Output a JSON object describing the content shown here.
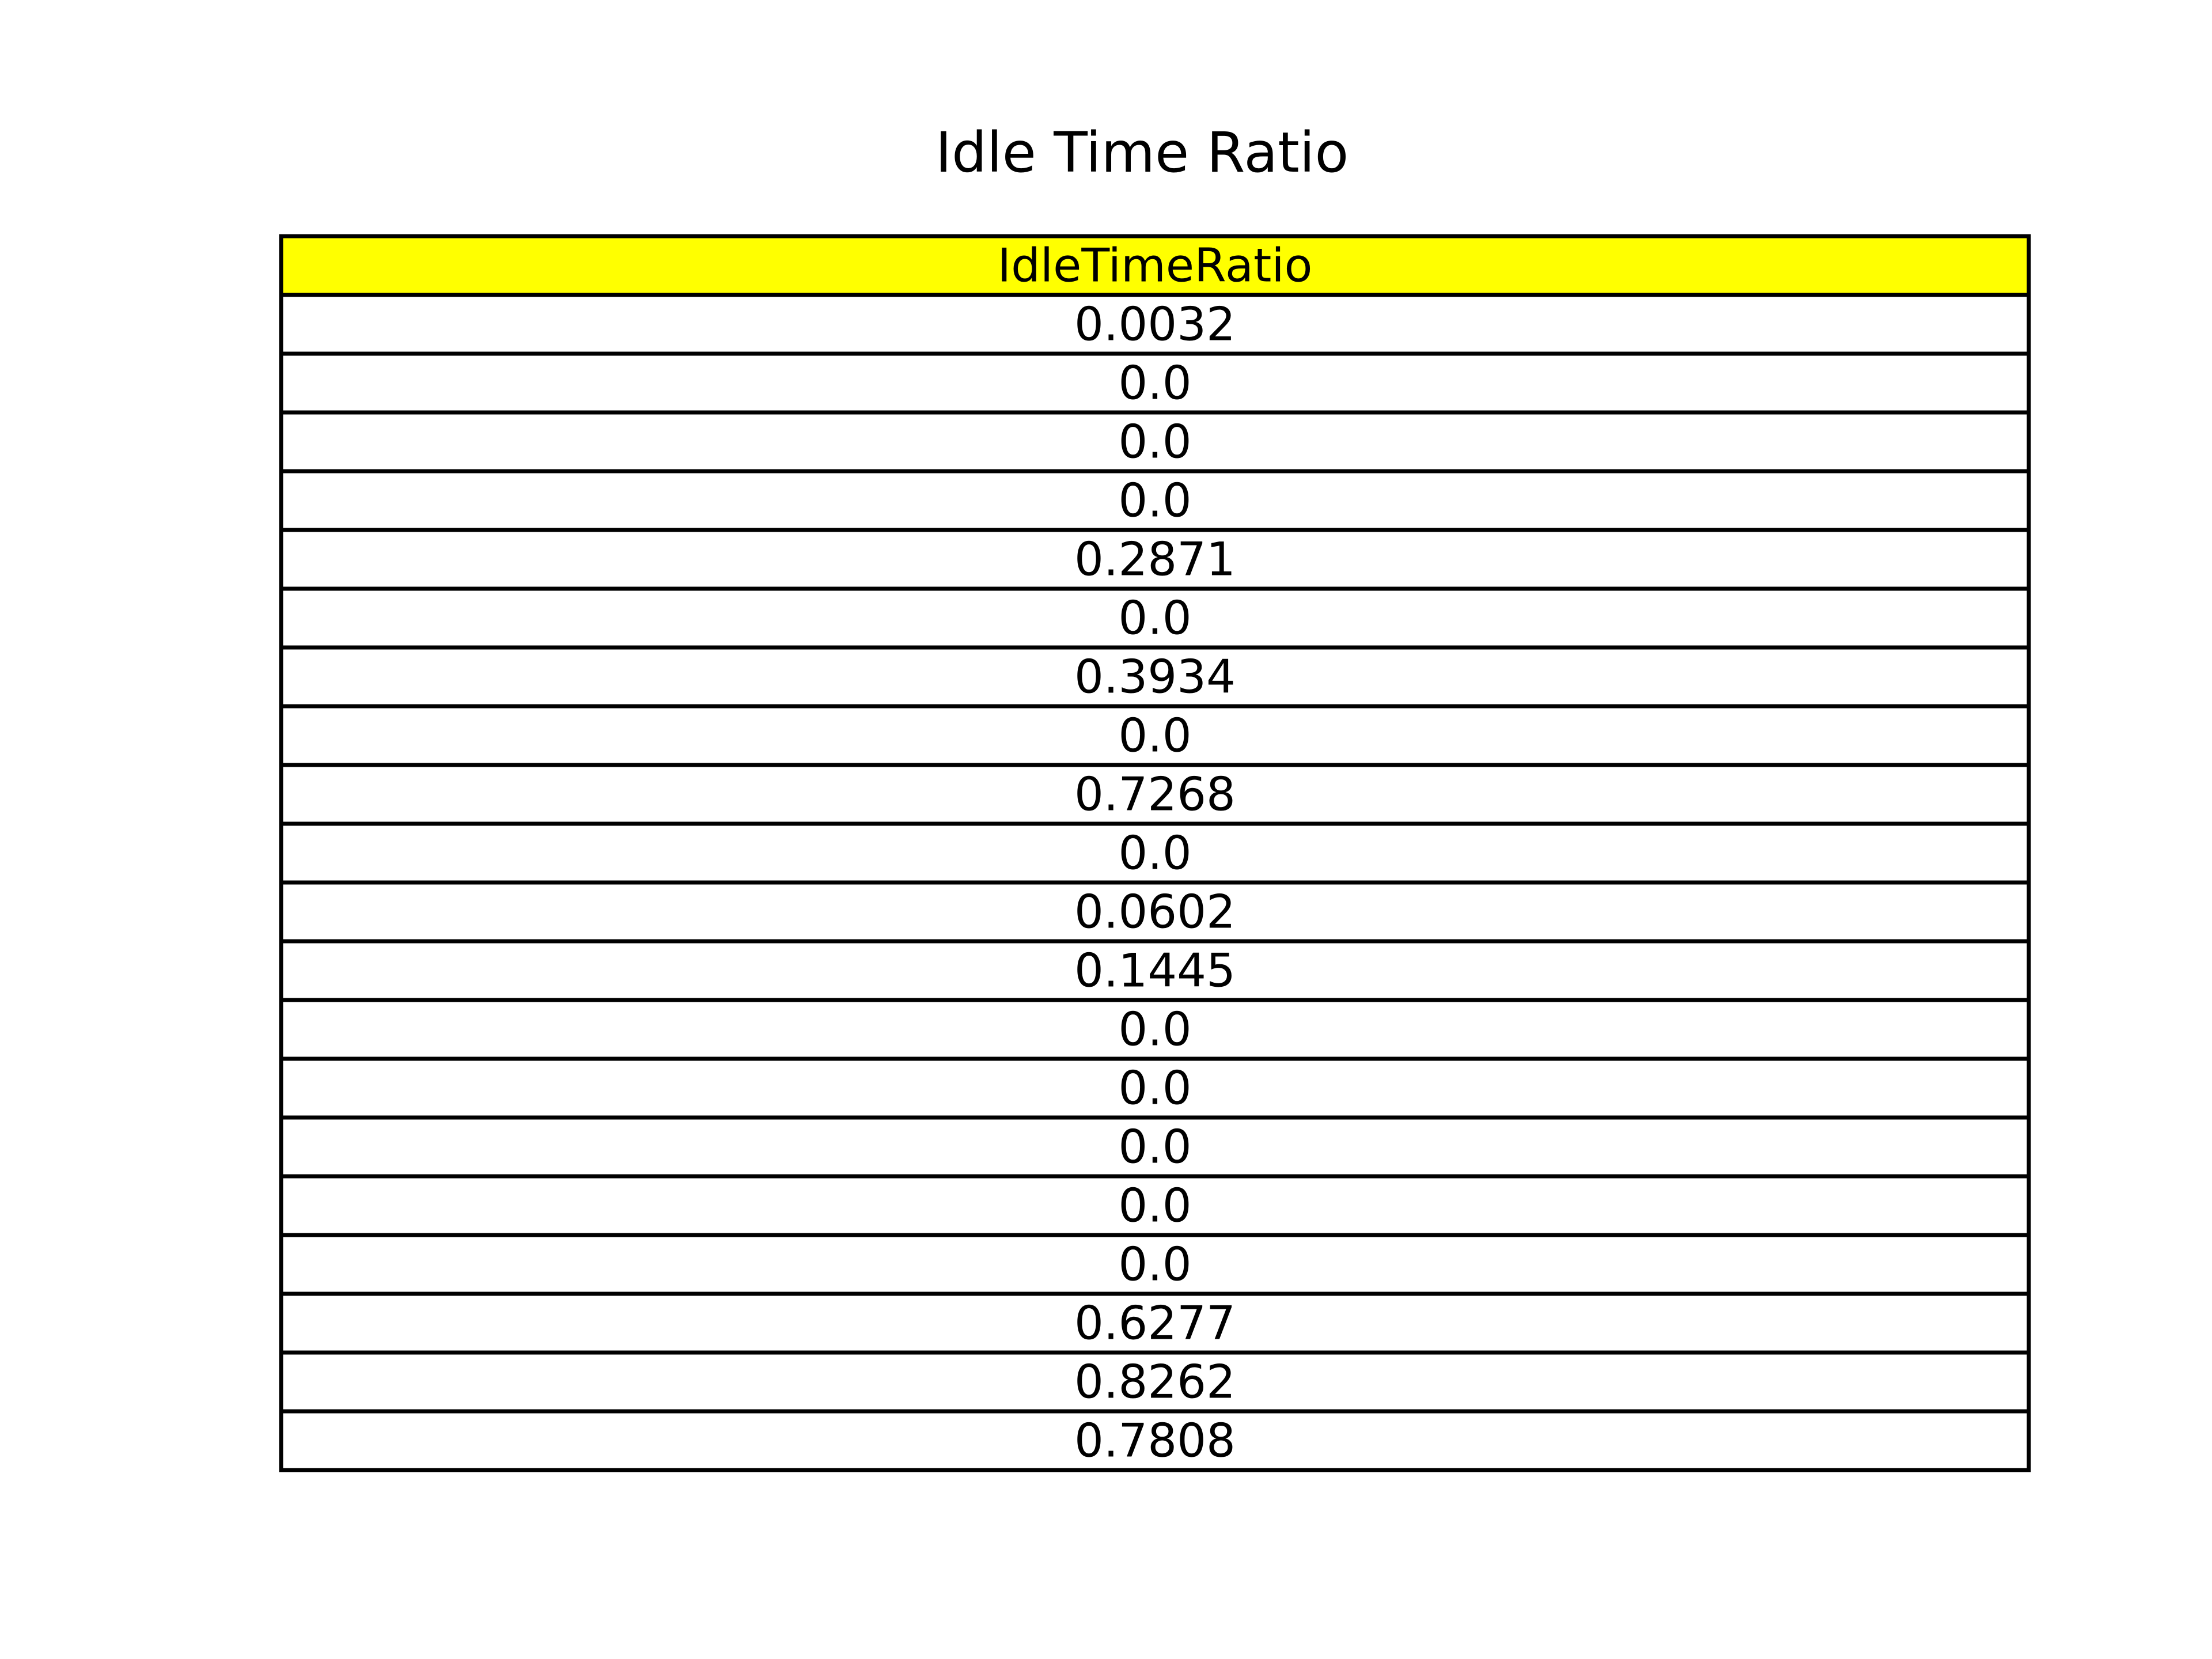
{
  "chart_data": {
    "type": "table",
    "title": "Idle Time Ratio",
    "columns": [
      "IdleTimeRatio"
    ],
    "rows": [
      [
        "0.0032"
      ],
      [
        "0.0"
      ],
      [
        "0.0"
      ],
      [
        "0.0"
      ],
      [
        "0.2871"
      ],
      [
        "0.0"
      ],
      [
        "0.3934"
      ],
      [
        "0.0"
      ],
      [
        "0.7268"
      ],
      [
        "0.0"
      ],
      [
        "0.0602"
      ],
      [
        "0.1445"
      ],
      [
        "0.0"
      ],
      [
        "0.0"
      ],
      [
        "0.0"
      ],
      [
        "0.0"
      ],
      [
        "0.0"
      ],
      [
        "0.6277"
      ],
      [
        "0.8262"
      ],
      [
        "0.7808"
      ]
    ],
    "header_color": "#ffff00",
    "cell_color": "#ffffff",
    "border_color": "#000000"
  }
}
